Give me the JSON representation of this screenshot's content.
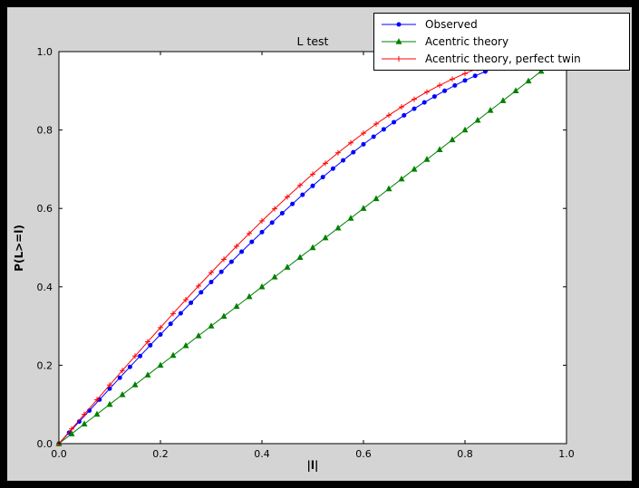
{
  "window": {
    "background": "#000000"
  },
  "figure": {
    "background": "#d4d4d4",
    "axes_background": "#ffffff",
    "axes_border": "#000000"
  },
  "legend": {
    "position": "upper right, overlapping top of axes",
    "items": [
      {
        "label": "Observed",
        "color": "#0000ff"
      },
      {
        "label": "Acentric theory",
        "color": "#008000"
      },
      {
        "label": "Acentric theory, perfect twin",
        "color": "#ff0000"
      }
    ]
  },
  "chart_data": {
    "type": "line",
    "title": "L test",
    "xlabel": "|l|",
    "ylabel": "P(L>=l)",
    "xlim": [
      0,
      1
    ],
    "ylim": [
      0,
      1
    ],
    "xticks": [
      "0.0",
      "0.2",
      "0.4",
      "0.6",
      "0.8",
      "1.0"
    ],
    "yticks": [
      "0.0",
      "0.2",
      "0.4",
      "0.6",
      "0.8",
      "1.0"
    ],
    "grid": false,
    "legend_position": "upper right",
    "series": [
      {
        "name": "Observed",
        "color": "#0000ff",
        "marker": "circle",
        "x": [
          0,
          0.02,
          0.04,
          0.06,
          0.08,
          0.1,
          0.12,
          0.14,
          0.16,
          0.18,
          0.2,
          0.22,
          0.24,
          0.26,
          0.28,
          0.3,
          0.32,
          0.34,
          0.36,
          0.38,
          0.4,
          0.42,
          0.44,
          0.46,
          0.48,
          0.5,
          0.52,
          0.54,
          0.56,
          0.58,
          0.6,
          0.62,
          0.64,
          0.66,
          0.68,
          0.7,
          0.72,
          0.74,
          0.76,
          0.78,
          0.8,
          0.82,
          0.84,
          0.86
        ],
        "y": [
          0,
          0.0281,
          0.0562,
          0.0843,
          0.1123,
          0.1402,
          0.1681,
          0.1958,
          0.2235,
          0.251,
          0.2784,
          0.3056,
          0.3326,
          0.3593,
          0.3859,
          0.4122,
          0.4383,
          0.464,
          0.4896,
          0.5147,
          0.5395,
          0.5639,
          0.5879,
          0.6115,
          0.6348,
          0.6575,
          0.6798,
          0.7015,
          0.7227,
          0.7433,
          0.7635,
          0.7829,
          0.8018,
          0.82,
          0.8375,
          0.8542,
          0.8703,
          0.8855,
          0.9,
          0.9136,
          0.9264,
          0.9382,
          0.9492,
          0.9592
        ]
      },
      {
        "name": "Acentric theory",
        "color": "#008000",
        "marker": "triangle",
        "x": [
          0,
          0.025,
          0.05,
          0.075,
          0.1,
          0.125,
          0.15,
          0.175,
          0.2,
          0.225,
          0.25,
          0.275,
          0.3,
          0.325,
          0.35,
          0.375,
          0.4,
          0.425,
          0.45,
          0.475,
          0.5,
          0.525,
          0.55,
          0.575,
          0.6,
          0.625,
          0.65,
          0.675,
          0.7,
          0.725,
          0.75,
          0.775,
          0.8,
          0.825,
          0.85,
          0.875,
          0.9,
          0.925,
          0.95,
          0.975
        ],
        "y": [
          0,
          0.025,
          0.05,
          0.075,
          0.1,
          0.125,
          0.15,
          0.175,
          0.2,
          0.225,
          0.25,
          0.275,
          0.3,
          0.325,
          0.35,
          0.375,
          0.4,
          0.425,
          0.45,
          0.475,
          0.5,
          0.525,
          0.55,
          0.575,
          0.6,
          0.625,
          0.65,
          0.675,
          0.7,
          0.725,
          0.75,
          0.775,
          0.8,
          0.825,
          0.85,
          0.875,
          0.9,
          0.925,
          0.95,
          0.975
        ]
      },
      {
        "name": "Acentric theory, perfect twin",
        "color": "#ff0000",
        "marker": "plus",
        "x": [
          0,
          0.025,
          0.05,
          0.075,
          0.1,
          0.125,
          0.15,
          0.175,
          0.2,
          0.225,
          0.25,
          0.275,
          0.3,
          0.325,
          0.35,
          0.375,
          0.4,
          0.425,
          0.45,
          0.475,
          0.5,
          0.525,
          0.55,
          0.575,
          0.6,
          0.625,
          0.65,
          0.675,
          0.7,
          0.725,
          0.75,
          0.775,
          0.8,
          0.825,
          0.85,
          0.875
        ],
        "y": [
          0,
          0.0375,
          0.0749,
          0.1123,
          0.1495,
          0.1865,
          0.2233,
          0.2598,
          0.296,
          0.3318,
          0.3672,
          0.4021,
          0.4365,
          0.4703,
          0.5036,
          0.5361,
          0.568,
          0.5991,
          0.6294,
          0.6589,
          0.6875,
          0.7152,
          0.7418,
          0.7674,
          0.792,
          0.8154,
          0.8377,
          0.8587,
          0.8785,
          0.897,
          0.9141,
          0.9298,
          0.944,
          0.9568,
          0.9679,
          0.9775
        ]
      }
    ]
  }
}
